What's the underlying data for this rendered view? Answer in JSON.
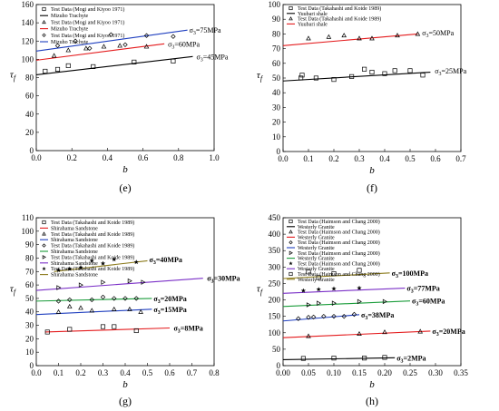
{
  "chart_data": [
    {
      "panel": "(e)",
      "type": "scatter",
      "xlabel": "b",
      "ylabel": "τf",
      "xlim": [
        0.0,
        1.0
      ],
      "ylim": [
        0,
        160
      ],
      "xticks": [
        "0.0",
        "0.2",
        "0.4",
        "0.6",
        "0.8",
        "1.0"
      ],
      "yticks": [
        "0",
        "20",
        "40",
        "60",
        "80",
        "100",
        "120",
        "140",
        "160"
      ],
      "legend": [
        {
          "label": "Test Data (Mogi and Kiyoo 1971)",
          "marker": "square",
          "color": "#000000"
        },
        {
          "label": "Mizuho Trachyte",
          "marker": "line",
          "color": "#000000"
        },
        {
          "label": "Test Data (Mogi and Kiyoo 1971)",
          "marker": "triangle",
          "color": "#000000"
        },
        {
          "label": "Mizuho Trachyte",
          "marker": "line",
          "color": "#e41a1c"
        },
        {
          "label": "Test Data (Mogi and Kiyoo 1971)",
          "marker": "diamond",
          "color": "#000000"
        },
        {
          "label": "Mizuho Trachyte",
          "marker": "line",
          "color": "#1f3fbf"
        }
      ],
      "series": [
        {
          "marker": "square",
          "color": "#000000",
          "points": [
            [
              0.05,
              87
            ],
            [
              0.12,
              89
            ],
            [
              0.18,
              93
            ],
            [
              0.32,
              92
            ],
            [
              0.55,
              97
            ],
            [
              0.77,
              98
            ]
          ],
          "fit": [
            [
              0.0,
              83
            ],
            [
              0.88,
              103
            ]
          ],
          "annotation": {
            "label": "σ3=45MPa",
            "at": [
              0.89,
              103
            ]
          }
        },
        {
          "marker": "triangle",
          "color": "#000000",
          "points": [
            [
              0.1,
              104
            ],
            [
              0.18,
              110
            ],
            [
              0.28,
              112
            ],
            [
              0.38,
              114
            ],
            [
              0.47,
              115
            ],
            [
              0.62,
              114
            ]
          ],
          "fit": [
            [
              0.0,
              99
            ],
            [
              0.72,
              117
            ]
          ],
          "annotation": {
            "label": "σ3=60MPa",
            "at": [
              0.73,
              117
            ]
          }
        },
        {
          "marker": "diamond",
          "color": "#000000",
          "points": [
            [
              0.12,
              115
            ],
            [
              0.22,
              120
            ],
            [
              0.3,
              112
            ],
            [
              0.42,
              127
            ],
            [
              0.5,
              116
            ],
            [
              0.62,
              126
            ],
            [
              0.77,
              125
            ]
          ],
          "fit": [
            [
              0.0,
              109
            ],
            [
              0.85,
              132
            ]
          ],
          "annotation": {
            "label": "σ3=75MPa",
            "at": [
              0.85,
              132
            ]
          }
        }
      ]
    },
    {
      "panel": "(f)",
      "type": "scatter",
      "xlabel": "b",
      "ylabel": "τf",
      "xlim": [
        0.0,
        0.7
      ],
      "ylim": [
        0,
        100
      ],
      "xticks": [
        "0.0",
        "0.1",
        "0.2",
        "0.3",
        "0.4",
        "0.5",
        "0.6",
        "0.7"
      ],
      "yticks": [
        "0",
        "10",
        "20",
        "30",
        "40",
        "50",
        "60",
        "70",
        "80",
        "90",
        "100"
      ],
      "legend": [
        {
          "label": "Test Data (Takahashi and Koide 1989)",
          "marker": "square",
          "color": "#000000"
        },
        {
          "label": "Yuubari shale",
          "marker": "line",
          "color": "#000000"
        },
        {
          "label": "Test Data (Takahashi and Koide 1989)",
          "marker": "triangle",
          "color": "#000000"
        },
        {
          "label": "Yuubari shale",
          "marker": "line",
          "color": "#e41a1c"
        }
      ],
      "series": [
        {
          "marker": "square",
          "color": "#000000",
          "points": [
            [
              0.07,
              50
            ],
            [
              0.075,
              52
            ],
            [
              0.13,
              50
            ],
            [
              0.2,
              49
            ],
            [
              0.27,
              51
            ],
            [
              0.32,
              56
            ],
            [
              0.35,
              54
            ],
            [
              0.4,
              53
            ],
            [
              0.44,
              55
            ],
            [
              0.5,
              55
            ],
            [
              0.55,
              52
            ]
          ],
          "fit": [
            [
              0.0,
              48
            ],
            [
              0.58,
              54
            ]
          ],
          "annotation": {
            "label": "σ3=25MPa",
            "at": [
              0.59,
              55
            ]
          }
        },
        {
          "marker": "triangle",
          "color": "#000000",
          "points": [
            [
              0.1,
              77
            ],
            [
              0.18,
              78
            ],
            [
              0.24,
              79
            ],
            [
              0.3,
              77
            ],
            [
              0.35,
              77
            ],
            [
              0.45,
              79
            ],
            [
              0.53,
              80
            ]
          ],
          "fit": [
            [
              0.0,
              72
            ],
            [
              0.53,
              80
            ]
          ],
          "annotation": {
            "label": "σ3=50MPa",
            "at": [
              0.54,
              81
            ]
          }
        }
      ]
    },
    {
      "panel": "(g)",
      "type": "scatter",
      "xlabel": "b",
      "ylabel": "τf",
      "xlim": [
        0.0,
        0.8
      ],
      "ylim": [
        0,
        110
      ],
      "xticks": [
        "0.0",
        "0.1",
        "0.2",
        "0.3",
        "0.4",
        "0.5",
        "0.6",
        "0.7",
        "0.8"
      ],
      "yticks": [
        "0",
        "10",
        "20",
        "30",
        "40",
        "50",
        "60",
        "70",
        "80",
        "90",
        "100",
        "110"
      ],
      "legend": [
        {
          "label": "Test Data (Takahashi and Koide 1989)",
          "marker": "square",
          "color": "#000000"
        },
        {
          "label": "Shirahama Sandstone",
          "marker": "line",
          "color": "#e41a1c"
        },
        {
          "label": "Test Data (Takahashi and Koide 1989)",
          "marker": "triangle",
          "color": "#000000"
        },
        {
          "label": "Shirahama Sandstone",
          "marker": "line",
          "color": "#1f3fbf"
        },
        {
          "label": "Test Data (Takahashi and Koide 1989)",
          "marker": "diamond",
          "color": "#000000"
        },
        {
          "label": "Shirahama Sandstone",
          "marker": "line",
          "color": "#1a9c3a"
        },
        {
          "label": "Test Data (Takahashi and Koide 1989)",
          "marker": "triangle-right",
          "color": "#000000"
        },
        {
          "label": "Shirahama Sandstone",
          "marker": "line",
          "color": "#7a2fc7"
        },
        {
          "label": "Test Data (Takahashi and Koide 1989)",
          "marker": "star",
          "color": "#000000"
        },
        {
          "label": "Shirahama Sandstone",
          "marker": "line",
          "color": "#8b7a1a"
        }
      ],
      "series": [
        {
          "marker": "square",
          "color": "#000000",
          "points": [
            [
              0.05,
              25
            ],
            [
              0.15,
              27
            ],
            [
              0.3,
              29
            ],
            [
              0.35,
              29
            ],
            [
              0.45,
              26
            ]
          ],
          "fit": [
            [
              0.04,
              25
            ],
            [
              0.6,
              28
            ]
          ],
          "line_color": "#e41a1c",
          "annotation": {
            "label": "σ3=8MPa",
            "at": [
              0.61,
              28
            ]
          }
        },
        {
          "marker": "triangle",
          "color": "#000000",
          "points": [
            [
              0.1,
              40
            ],
            [
              0.15,
              44
            ],
            [
              0.2,
              43
            ],
            [
              0.25,
              41
            ],
            [
              0.35,
              42
            ],
            [
              0.42,
              42
            ],
            [
              0.47,
              40
            ]
          ],
          "fit": [
            [
              0.0,
              38
            ],
            [
              0.52,
              42
            ]
          ],
          "line_color": "#1f3fbf",
          "annotation": {
            "label": "σ3=15MPa",
            "at": [
              0.52,
              42
            ]
          }
        },
        {
          "marker": "diamond",
          "color": "#000000",
          "points": [
            [
              0.1,
              48
            ],
            [
              0.15,
              49
            ],
            [
              0.25,
              49
            ],
            [
              0.3,
              51
            ],
            [
              0.35,
              50
            ],
            [
              0.4,
              50
            ],
            [
              0.45,
              50
            ]
          ],
          "fit": [
            [
              0.0,
              48
            ],
            [
              0.52,
              50
            ]
          ],
          "line_color": "#1a9c3a",
          "annotation": {
            "label": "σ3=20MPa",
            "at": [
              0.52,
              50
            ]
          }
        },
        {
          "marker": "triangle-right",
          "color": "#000000",
          "points": [
            [
              0.1,
              58
            ],
            [
              0.2,
              60
            ],
            [
              0.3,
              62
            ],
            [
              0.42,
              63
            ],
            [
              0.48,
              62
            ]
          ],
          "fit": [
            [
              0.0,
              56
            ],
            [
              0.75,
              65
            ]
          ],
          "line_color": "#7a2fc7",
          "annotation": {
            "label": "σ3=30MPa",
            "at": [
              0.76,
              65
            ]
          }
        },
        {
          "marker": "star",
          "color": "#000000",
          "points": [
            [
              0.1,
              71
            ],
            [
              0.15,
              72
            ],
            [
              0.2,
              73
            ],
            [
              0.25,
              78
            ],
            [
              0.3,
              76
            ],
            [
              0.35,
              79
            ],
            [
              0.45,
              77
            ]
          ],
          "fit": [
            [
              0.08,
              70
            ],
            [
              0.5,
              78
            ]
          ],
          "line_color": "#8b7a1a",
          "annotation": {
            "label": "σ3=40MPa",
            "at": [
              0.5,
              79
            ]
          }
        }
      ]
    },
    {
      "panel": "(h)",
      "type": "scatter",
      "xlabel": "b",
      "ylabel": "τf",
      "xlim": [
        0.0,
        0.35
      ],
      "ylim": [
        0,
        450
      ],
      "xticks": [
        "0.00",
        "0.05",
        "0.10",
        "0.15",
        "0.20",
        "0.25",
        "0.30",
        "0.35"
      ],
      "yticks": [
        "0",
        "50",
        "100",
        "150",
        "200",
        "250",
        "300",
        "350",
        "400",
        "450"
      ],
      "legend": [
        {
          "label": "Test Data (Haimson and Chang 2000)",
          "marker": "square",
          "color": "#000000"
        },
        {
          "label": "Westerly Granite",
          "marker": "line",
          "color": "#000000"
        },
        {
          "label": "Test Data (Haimson and Chang 2000)",
          "marker": "triangle",
          "color": "#000000"
        },
        {
          "label": "Westerly Granite",
          "marker": "line",
          "color": "#e41a1c"
        },
        {
          "label": "Test Data (Haimson and Chang 2000)",
          "marker": "diamond",
          "color": "#000000"
        },
        {
          "label": "Westerly Granite",
          "marker": "line",
          "color": "#1f3fbf"
        },
        {
          "label": "Test Data (Haimson and Chang 2000)",
          "marker": "triangle-right",
          "color": "#000000"
        },
        {
          "label": "Westerly Granite",
          "marker": "line",
          "color": "#1a9c3a"
        },
        {
          "label": "Test Data (Haimson and Chang 2000)",
          "marker": "star",
          "color": "#000000"
        },
        {
          "label": "Westerly Granite",
          "marker": "line",
          "color": "#7a2fc7"
        },
        {
          "label": "Test Data (Haimson and Chang 2000)",
          "marker": "square",
          "color": "#000000"
        },
        {
          "label": "Westerly Granite",
          "marker": "line",
          "color": "#8b7a1a"
        }
      ],
      "series": [
        {
          "marker": "square",
          "color": "#000000",
          "points": [
            [
              0.04,
              22
            ],
            [
              0.1,
              23
            ],
            [
              0.16,
              23
            ],
            [
              0.2,
              25
            ]
          ],
          "fit": [
            [
              0.0,
              18
            ],
            [
              0.22,
              24
            ]
          ],
          "line_color": "#000000",
          "annotation": {
            "label": "σ3=2MPa",
            "at": [
              0.22,
              24
            ]
          }
        },
        {
          "marker": "triangle",
          "color": "#000000",
          "points": [
            [
              0.05,
              90
            ],
            [
              0.15,
              97
            ],
            [
              0.2,
              102
            ],
            [
              0.27,
              104
            ]
          ],
          "fit": [
            [
              0.0,
              85
            ],
            [
              0.29,
              105
            ]
          ],
          "line_color": "#e41a1c",
          "annotation": {
            "label": "σ3=20MPa",
            "at": [
              0.29,
              105
            ]
          }
        },
        {
          "marker": "diamond",
          "color": "#000000",
          "points": [
            [
              0.03,
              143
            ],
            [
              0.05,
              147
            ],
            [
              0.06,
              148
            ],
            [
              0.08,
              150
            ],
            [
              0.1,
              150
            ],
            [
              0.12,
              150
            ],
            [
              0.14,
              156
            ]
          ],
          "fit": [
            [
              0.0,
              136
            ],
            [
              0.15,
              155
            ]
          ],
          "line_color": "#1f3fbf",
          "annotation": {
            "label": "σ3=38MPa",
            "at": [
              0.15,
              155
            ]
          }
        },
        {
          "marker": "triangle-right",
          "color": "#000000",
          "points": [
            [
              0.05,
              185
            ],
            [
              0.07,
              190
            ],
            [
              0.1,
              190
            ],
            [
              0.15,
              195
            ],
            [
              0.2,
              195
            ]
          ],
          "fit": [
            [
              0.0,
              180
            ],
            [
              0.25,
              197
            ]
          ],
          "line_color": "#1a9c3a",
          "annotation": {
            "label": "σ3=60MPa",
            "at": [
              0.25,
              197
            ]
          }
        },
        {
          "marker": "star",
          "color": "#000000",
          "points": [
            [
              0.04,
              228
            ],
            [
              0.07,
              232
            ],
            [
              0.1,
              234
            ],
            [
              0.15,
              236
            ]
          ],
          "fit": [
            [
              0.0,
              220
            ],
            [
              0.24,
              236
            ]
          ],
          "line_color": "#7a2fc7",
          "annotation": {
            "label": "σ3=77MPa",
            "at": [
              0.24,
              236
            ]
          }
        },
        {
          "marker": "square",
          "color": "#000000",
          "points": [
            [
              0.05,
              285
            ],
            [
              0.07,
              268
            ],
            [
              0.1,
              280
            ],
            [
              0.15,
              290
            ]
          ],
          "fit": [
            [
              0.0,
              265
            ],
            [
              0.21,
              282
            ]
          ],
          "line_color": "#8b7a1a",
          "annotation": {
            "label": "σ3=100MPa",
            "at": [
              0.21,
              282
            ]
          }
        }
      ]
    }
  ]
}
